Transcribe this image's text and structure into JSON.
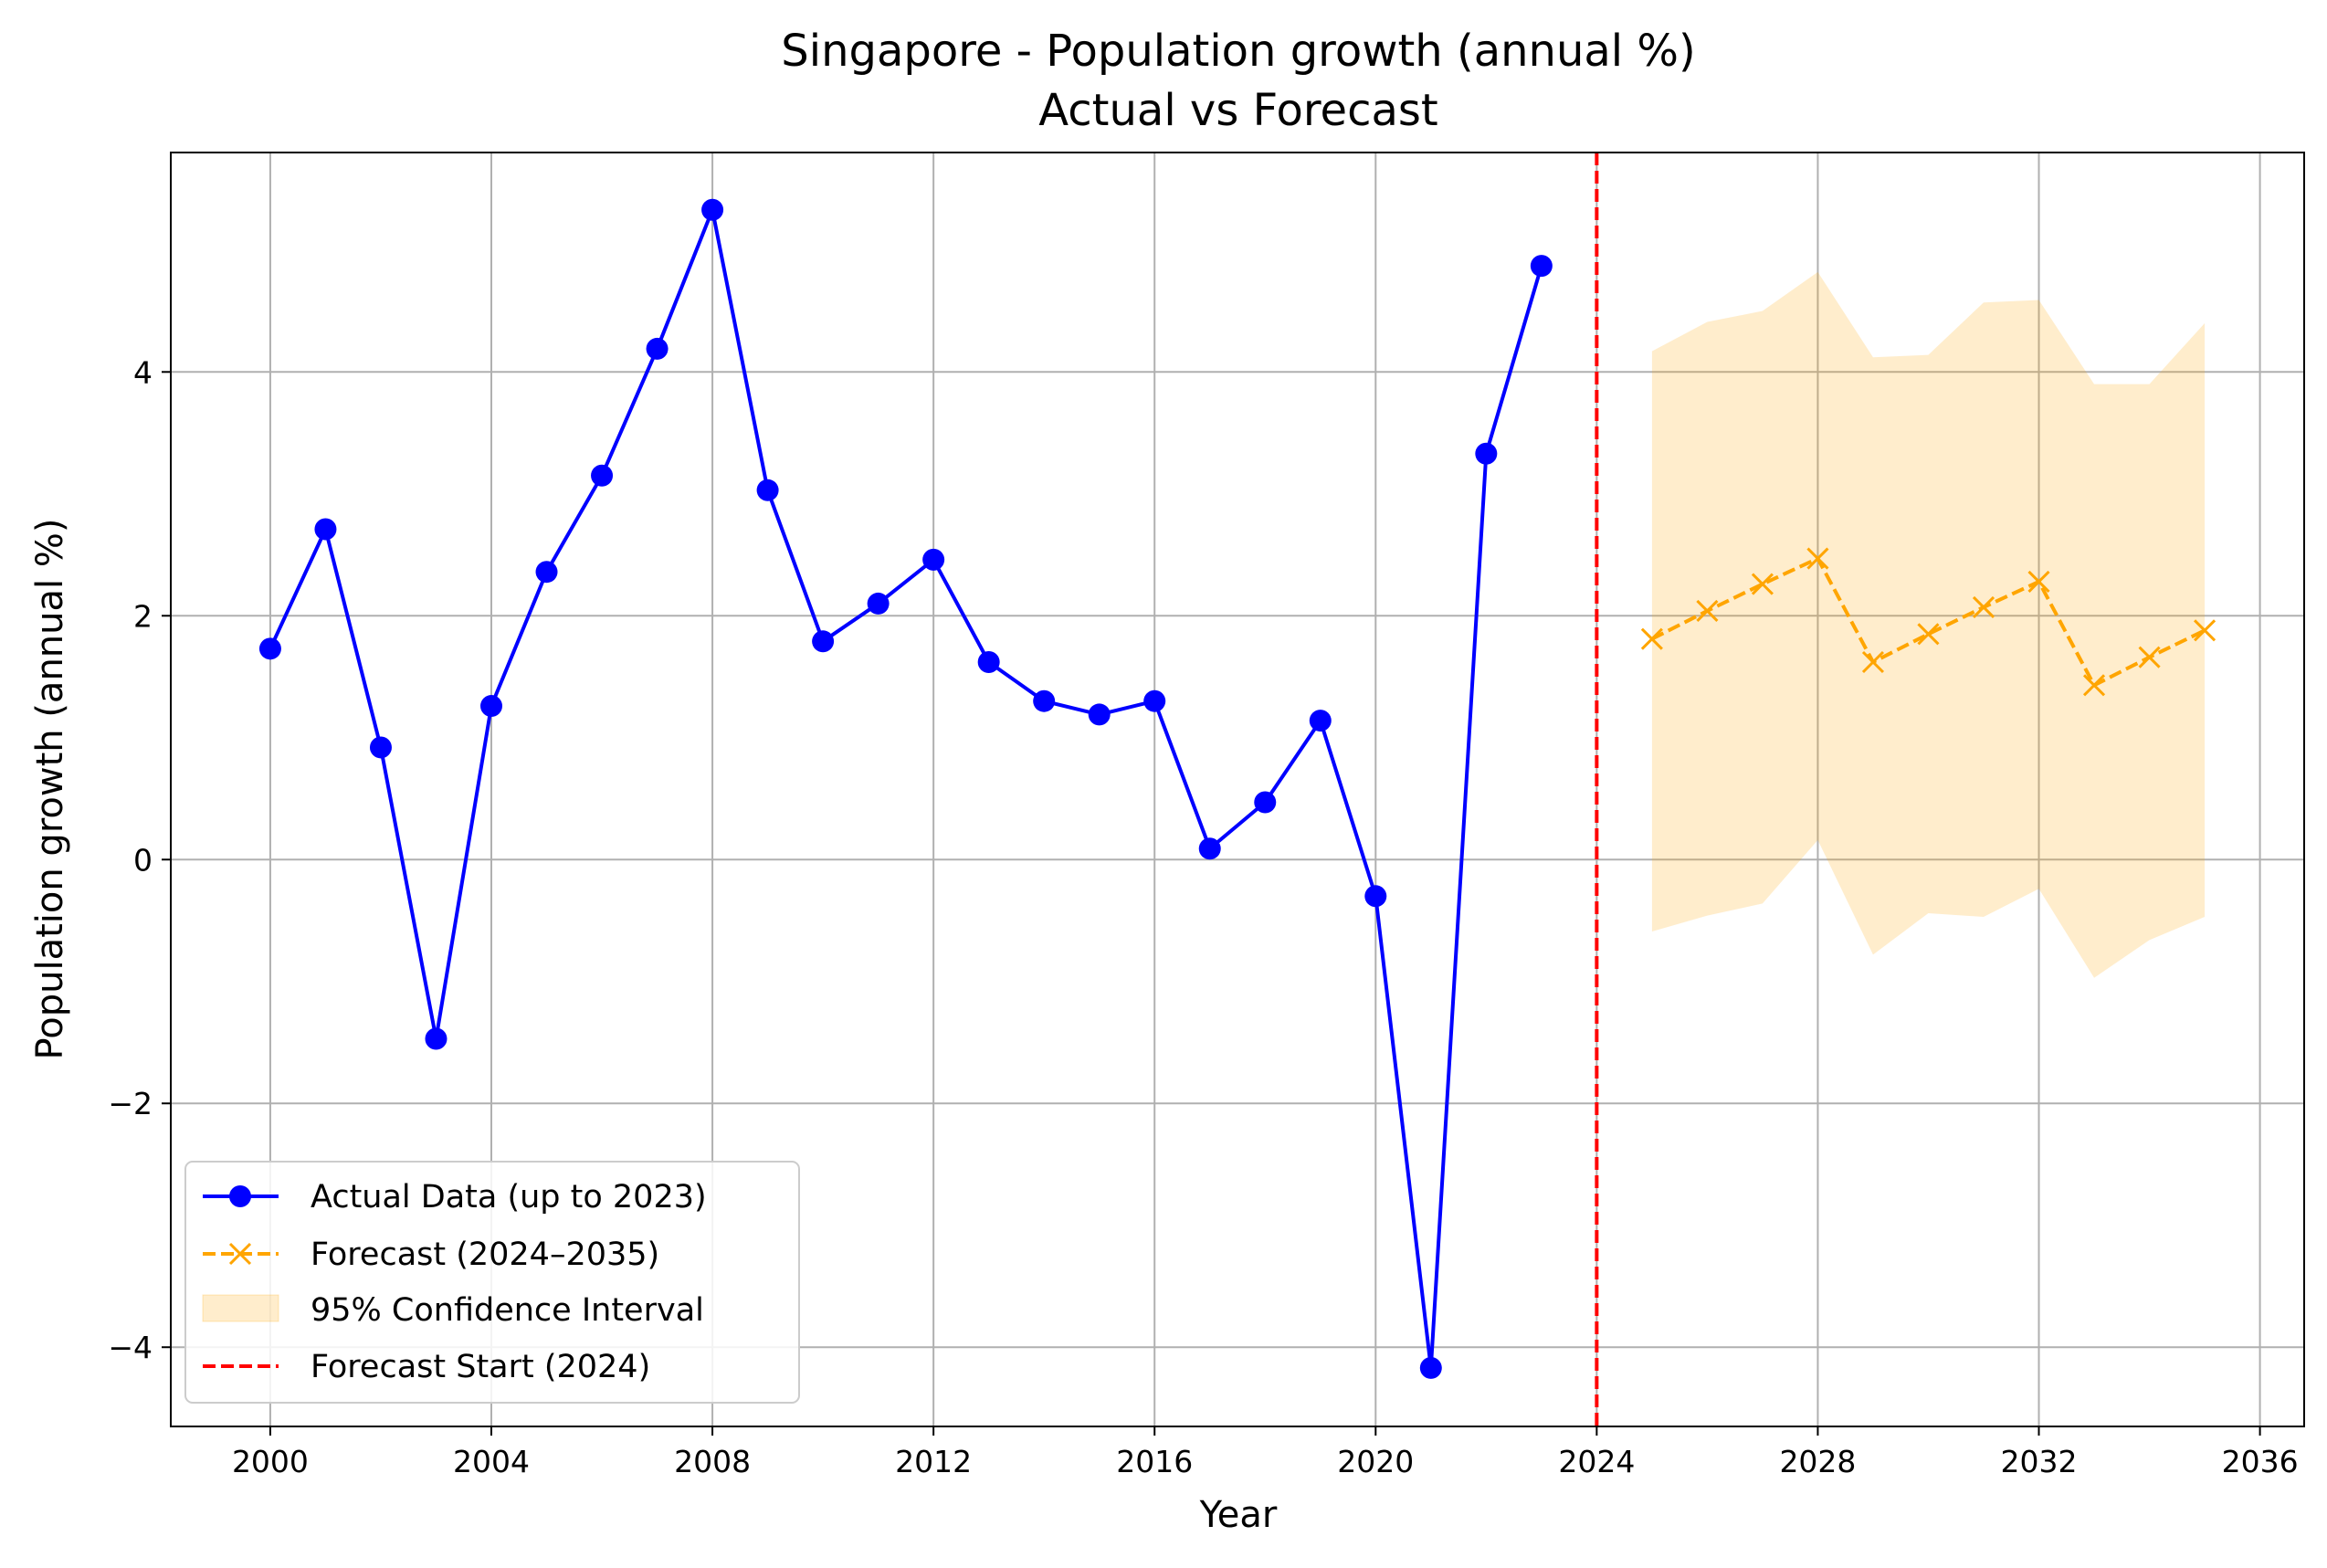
{
  "chart_data": {
    "type": "line",
    "title": "Singapore - Population growth (annual %)",
    "subtitle": "Actual vs Forecast",
    "xlabel": "Year",
    "ylabel": "Population growth (annual %)",
    "xlim": [
      1998.2,
      2036.8
    ],
    "ylim": [
      -4.65,
      5.8
    ],
    "xticks": [
      2000,
      2004,
      2008,
      2012,
      2016,
      2020,
      2024,
      2028,
      2032,
      2036
    ],
    "xtick_labels": [
      "2000",
      "2004",
      "2008",
      "2012",
      "2016",
      "2020",
      "2024",
      "2028",
      "2032",
      "2036"
    ],
    "yticks": [
      -4,
      -2,
      0,
      2,
      4
    ],
    "ytick_labels": [
      "−4",
      "−2",
      "0",
      "2",
      "4"
    ],
    "grid": true,
    "legend_position": "lower-left",
    "series": [
      {
        "name": "Actual Data (up to 2023)",
        "color": "#0000ff",
        "style": "solid",
        "marker": "circle",
        "x": [
          2000,
          2001,
          2002,
          2003,
          2004,
          2005,
          2006,
          2007,
          2008,
          2009,
          2010,
          2011,
          2012,
          2013,
          2014,
          2015,
          2016,
          2017,
          2018,
          2019,
          2020,
          2021,
          2022,
          2023
        ],
        "values": [
          1.73,
          2.71,
          0.92,
          -1.47,
          1.26,
          2.36,
          3.15,
          4.19,
          5.33,
          3.03,
          1.79,
          2.1,
          2.46,
          1.62,
          1.3,
          1.19,
          1.3,
          0.09,
          0.47,
          1.14,
          -0.3,
          -4.17,
          3.33,
          4.87
        ]
      },
      {
        "name": "Forecast (2024–2035)",
        "color": "#ffa500",
        "style": "dashed",
        "marker": "x",
        "x": [
          2025,
          2026,
          2027,
          2028,
          2029,
          2030,
          2031,
          2032,
          2033,
          2034,
          2035
        ],
        "values": [
          1.81,
          2.04,
          2.26,
          2.47,
          1.62,
          1.85,
          2.07,
          2.28,
          1.43,
          1.66,
          1.88
        ]
      }
    ],
    "confidence_interval": {
      "name": "95% Confidence Interval",
      "color": "#ffa500",
      "x": [
        2025,
        2026,
        2027,
        2028,
        2029,
        2030,
        2031,
        2032,
        2033,
        2034,
        2035
      ],
      "lower": [
        -0.59,
        -0.46,
        -0.36,
        0.16,
        -0.78,
        -0.44,
        -0.47,
        -0.24,
        -0.97,
        -0.66,
        -0.47
      ],
      "upper": [
        4.17,
        4.41,
        4.5,
        4.82,
        4.12,
        4.14,
        4.57,
        4.59,
        3.9,
        3.9,
        4.4
      ]
    },
    "vline": {
      "name": "Forecast Start (2024)",
      "x": 2024,
      "color": "#ff0000",
      "style": "dashed"
    }
  }
}
